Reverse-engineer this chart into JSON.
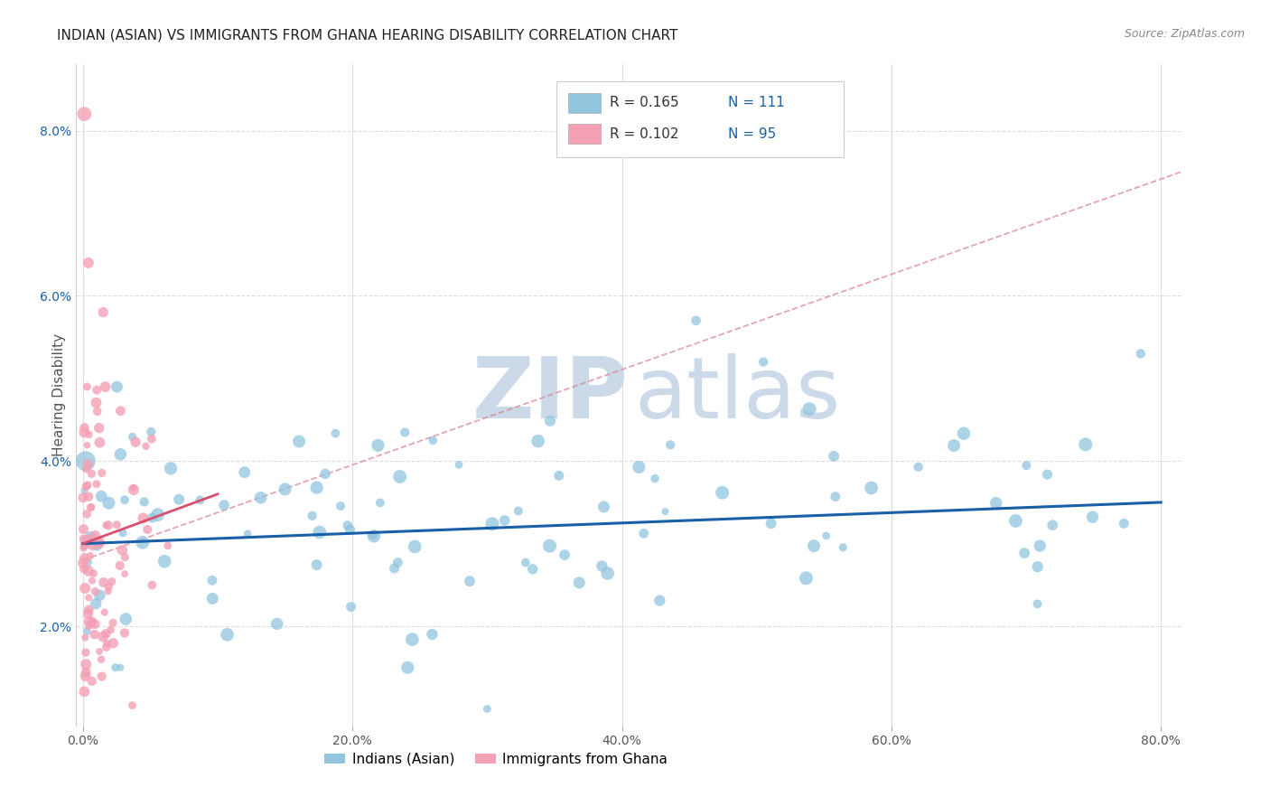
{
  "title": "INDIAN (ASIAN) VS IMMIGRANTS FROM GHANA HEARING DISABILITY CORRELATION CHART",
  "source": "Source: ZipAtlas.com",
  "xlabel_ticks": [
    "0.0%",
    "20.0%",
    "40.0%",
    "60.0%",
    "80.0%"
  ],
  "xlabel_vals": [
    0.0,
    0.2,
    0.4,
    0.6,
    0.8
  ],
  "ylabel": "Hearing Disability",
  "ylabel_ticks": [
    "2.0%",
    "4.0%",
    "6.0%",
    "8.0%"
  ],
  "ylabel_vals": [
    0.02,
    0.04,
    0.06,
    0.08
  ],
  "ylim": [
    0.008,
    0.088
  ],
  "xlim": [
    -0.005,
    0.815
  ],
  "blue_color": "#92c5de",
  "pink_color": "#f4a0b5",
  "blue_line_color": "#1a5fa8",
  "pink_line_color": "#d94f70",
  "pink_dashed_color": "#d48090",
  "R_blue": 0.165,
  "N_blue": 111,
  "R_pink": 0.102,
  "N_pink": 95,
  "watermark_zip": "ZIP",
  "watermark_atlas": "atlas",
  "watermark_color": "#ccd9e8",
  "background_color": "#ffffff",
  "grid_color": "#dddddd",
  "title_fontsize": 11,
  "source_fontsize": 9
}
